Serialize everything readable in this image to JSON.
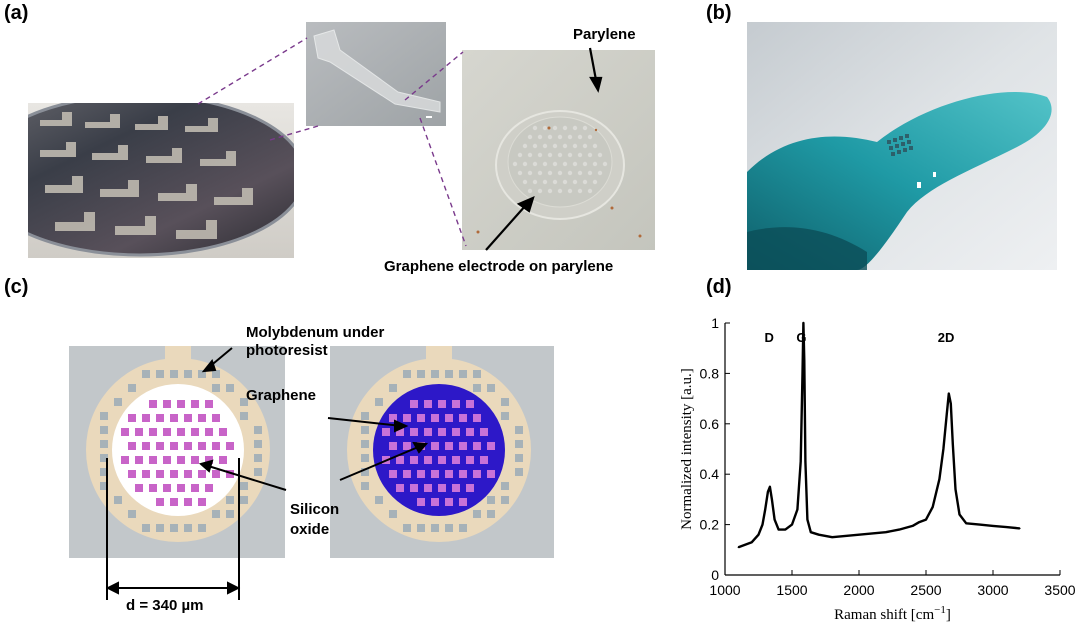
{
  "figure": {
    "panels": {
      "a": "(a)",
      "b": "(b)",
      "c": "(c)",
      "d": "(d)"
    },
    "a": {
      "label_parylene": "Parylene",
      "label_graphene_electrode": "Graphene electrode on parylene"
    },
    "c": {
      "label_molybdenum_line1": "Molybdenum under",
      "label_molybdenum_line2": "photoresist",
      "label_graphene": "Graphene",
      "label_silicon_line1": "Silicon",
      "label_silicon_line2": "oxide",
      "label_diameter": "d = 340 µm"
    },
    "d": {
      "peak_labels": [
        "D",
        "G",
        "2D"
      ]
    }
  },
  "chart_data": {
    "type": "line",
    "xlabel": "Raman shift [cm^-1]",
    "ylabel": "Normalized intensity [a.u.]",
    "xlim": [
      1000,
      3500
    ],
    "ylim": [
      0,
      1
    ],
    "xticks": [
      1000,
      1500,
      2000,
      2500,
      3000,
      3500
    ],
    "yticks": [
      0,
      0.2,
      0.4,
      0.6,
      0.8,
      1
    ],
    "ytick_labels": [
      "0",
      "0.2",
      "0.4",
      "0.6",
      "0.8",
      "1"
    ],
    "grid": false,
    "series": [
      {
        "color": "#000000",
        "x": [
          1100,
          1150,
          1200,
          1250,
          1280,
          1300,
          1320,
          1335,
          1350,
          1370,
          1400,
          1450,
          1500,
          1540,
          1565,
          1578,
          1585,
          1592,
          1600,
          1615,
          1640,
          1700,
          1800,
          1900,
          2000,
          2100,
          2200,
          2300,
          2400,
          2450,
          2500,
          2550,
          2600,
          2630,
          2655,
          2670,
          2685,
          2700,
          2720,
          2750,
          2800,
          2900,
          3000,
          3100,
          3200
        ],
        "y": [
          0.11,
          0.12,
          0.13,
          0.16,
          0.2,
          0.26,
          0.33,
          0.35,
          0.3,
          0.22,
          0.18,
          0.18,
          0.2,
          0.26,
          0.45,
          0.8,
          1.0,
          0.85,
          0.45,
          0.22,
          0.17,
          0.16,
          0.15,
          0.155,
          0.16,
          0.165,
          0.17,
          0.18,
          0.195,
          0.21,
          0.22,
          0.27,
          0.38,
          0.5,
          0.64,
          0.72,
          0.68,
          0.52,
          0.34,
          0.24,
          0.205,
          0.2,
          0.195,
          0.19,
          0.185
        ]
      }
    ],
    "annotations": [
      {
        "text": "D",
        "x": 1330
      },
      {
        "text": "G",
        "x": 1580
      },
      {
        "text": "2D",
        "x": 2670
      }
    ]
  }
}
